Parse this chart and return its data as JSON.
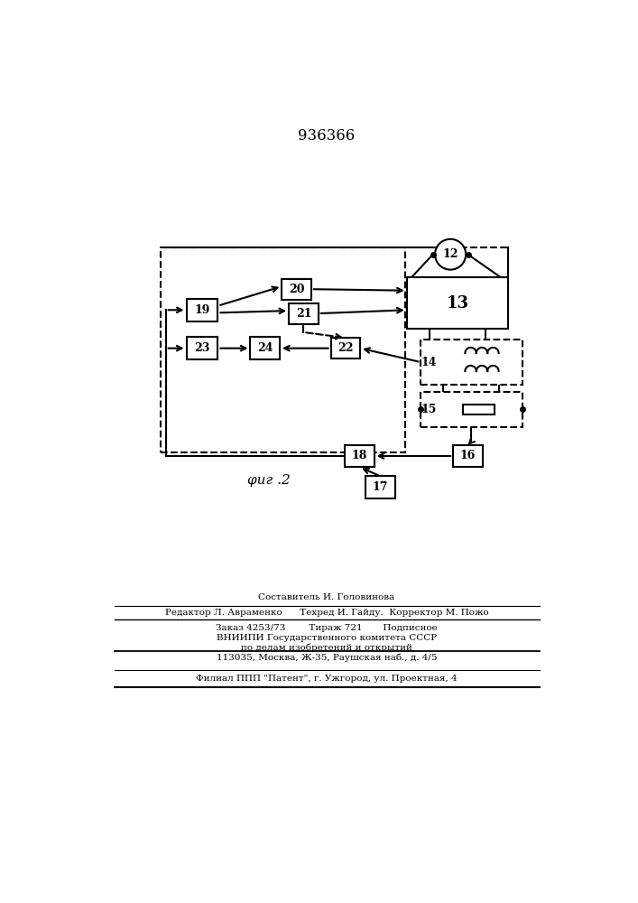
{
  "title": "936366",
  "fig_label": "φиг .2",
  "background_color": "#ffffff",
  "line_color": "#000000",
  "footer_lines": [
    "Составитель И. Головинова",
    "Редактор Л. Авраменко      Техред И. Гайду.  Корректор М. Пожо",
    "Заказ 4253/73        Тираж 721       Подписное",
    "ВНИИПИ Государственного комитета СССР",
    "по делам изобретений и открытий",
    "113035, Москва, Ж-35, Раушская наб., д. 4/5",
    "Филиал ППП \"Патент\", г. Ужгород, ул. Проектная, 4"
  ]
}
